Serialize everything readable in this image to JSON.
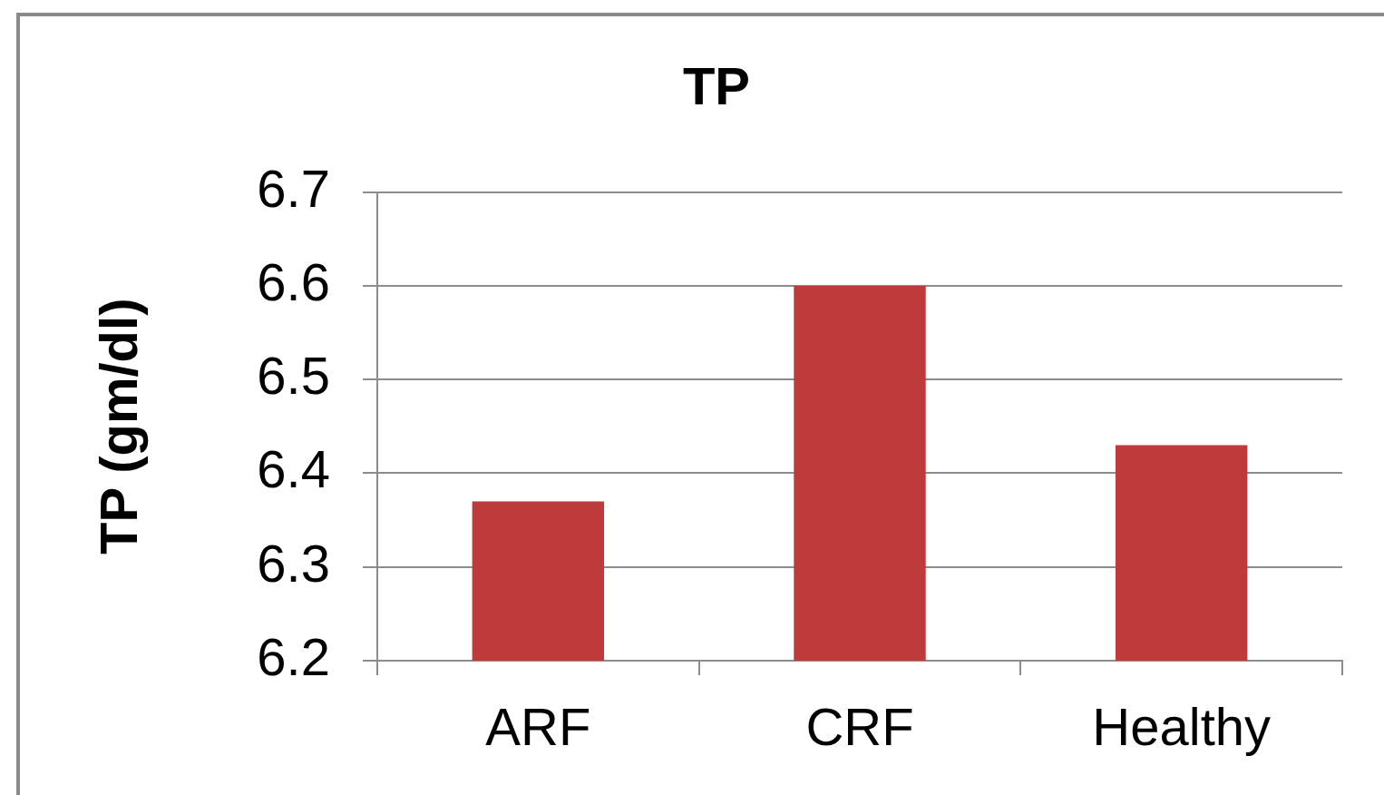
{
  "chart_data": {
    "type": "bar",
    "title": "TP",
    "ylabel": "TP (gm/dl)",
    "categories": [
      "ARF",
      "CRF",
      "Healthy"
    ],
    "values": [
      6.37,
      6.6,
      6.43
    ],
    "color": "#bf3a3a",
    "ylim": [
      6.2,
      6.7
    ],
    "yticks": [
      6.2,
      6.3,
      6.4,
      6.5,
      6.6,
      6.7
    ],
    "grid": "y"
  }
}
